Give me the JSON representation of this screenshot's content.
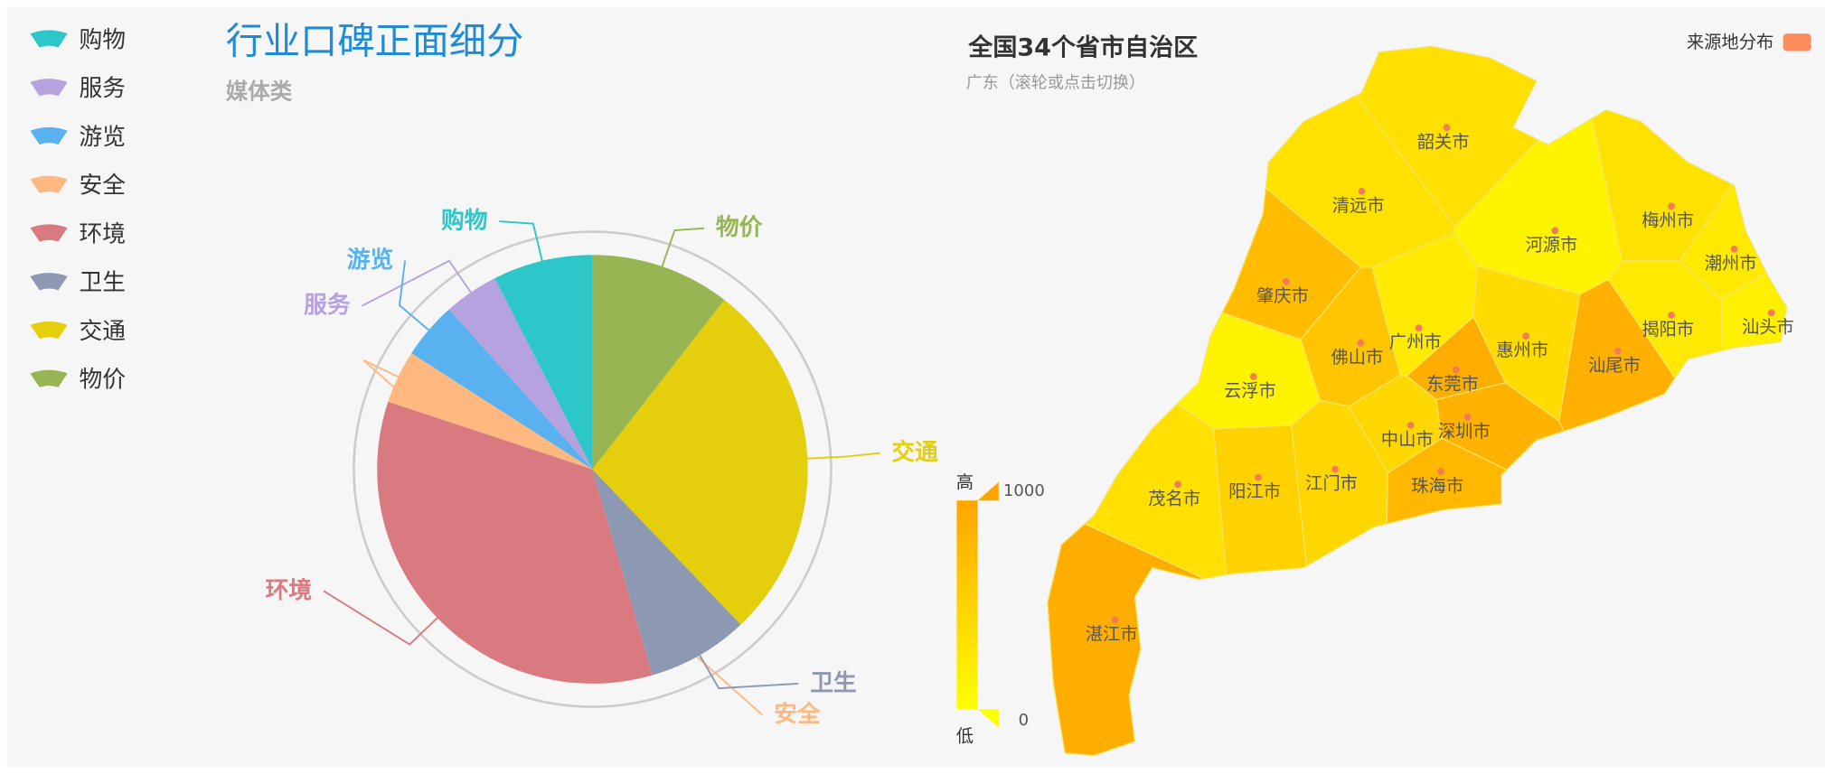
{
  "chart_data": [
    {
      "type": "pie",
      "title": "行业口碑正面细分",
      "subtitle": "媒体类",
      "categories": [
        "购物",
        "服务",
        "游览",
        "安全",
        "环境",
        "卫生",
        "交通",
        "物价"
      ],
      "values": [
        7.5,
        4.1,
        4.3,
        4,
        34.6,
        7.6,
        27.4,
        10.5
      ],
      "colors": [
        "#2ec7c9",
        "#b6a2de",
        "#5ab1ef",
        "#ffb980",
        "#d87a80",
        "#8d98b3",
        "#e5cf0d",
        "#97b552"
      ]
    },
    {
      "type": "map",
      "title": "全国34个省市自治区",
      "subtitle": "广东（滚轮或点击切换）",
      "legend": {
        "name": "来源地分布",
        "color": "#ff8c5a"
      },
      "visual_map": {
        "min": 0,
        "max": 1000,
        "high_label": "高",
        "low_label": "低",
        "colors": [
          "#ffff00",
          "#ffa500"
        ]
      },
      "regions": [
        {
          "name": "韶关市",
          "value": 350
        },
        {
          "name": "清远市",
          "value": 330
        },
        {
          "name": "河源市",
          "value": 120
        },
        {
          "name": "梅州市",
          "value": 330
        },
        {
          "name": "潮州市",
          "value": 250
        },
        {
          "name": "肇庆市",
          "value": 750
        },
        {
          "name": "广州市",
          "value": 230
        },
        {
          "name": "佛山市",
          "value": 650
        },
        {
          "name": "惠州市",
          "value": 400
        },
        {
          "name": "揭阳市",
          "value": 250
        },
        {
          "name": "汕头市",
          "value": 180
        },
        {
          "name": "汕尾市",
          "value": 880
        },
        {
          "name": "东莞市",
          "value": 900
        },
        {
          "name": "云浮市",
          "value": 130
        },
        {
          "name": "深圳市",
          "value": 850
        },
        {
          "name": "中山市",
          "value": 450
        },
        {
          "name": "江门市",
          "value": 450
        },
        {
          "name": "阳江市",
          "value": 500
        },
        {
          "name": "珠海市",
          "value": 800
        },
        {
          "name": "茂名市",
          "value": 350
        },
        {
          "name": "湛江市",
          "value": 900
        }
      ]
    }
  ]
}
